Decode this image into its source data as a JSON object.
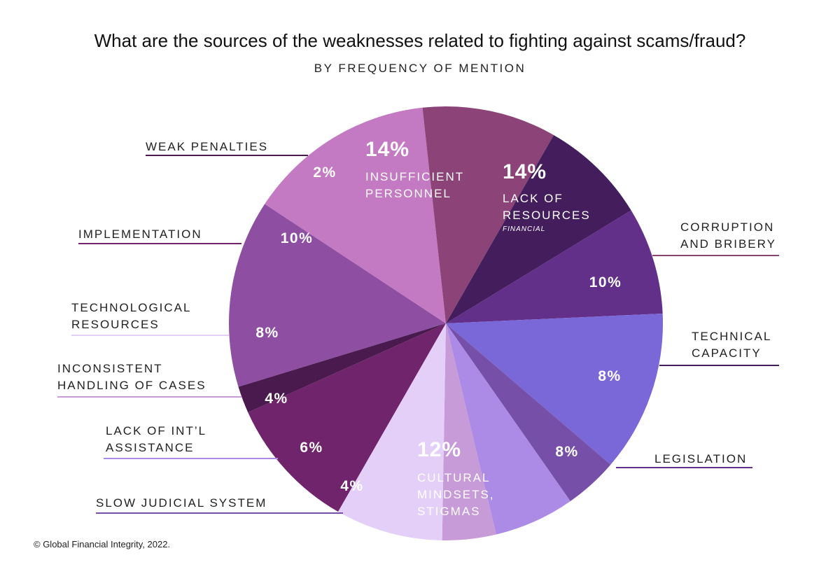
{
  "chart_data": {
    "type": "pie",
    "title": "What are the sources of the weaknesses related to fighting against scams/fraud?",
    "subtitle": "BY FREQUENCY OF MENTION",
    "credit": "© Global Financial Integrity, 2022.",
    "slices": [
      {
        "key": "insufficient_personnel",
        "value": 14,
        "value_label": "14%",
        "label_lines": [
          "INSUFFICIENT",
          "PERSONNEL"
        ],
        "color": "#8e4fa3"
      },
      {
        "key": "lack_of_resources",
        "value": 14,
        "value_label": "14%",
        "label_lines": [
          "LACK OF",
          "RESOURCES"
        ],
        "sub_label": "FINANCIAL",
        "color": "#c47ac2"
      },
      {
        "key": "corruption_and_bribery",
        "value": 10,
        "value_label": "10%",
        "label_lines": [
          "CORRUPTION",
          "AND BRIBERY"
        ],
        "color": "#8c4478"
      },
      {
        "key": "technical_capacity",
        "value": 8,
        "value_label": "8%",
        "label_lines": [
          "TECHNICAL",
          "CAPACITY"
        ],
        "color": "#431d5c"
      },
      {
        "key": "legislation",
        "value": 8,
        "value_label": "8%",
        "label_lines": [
          "LEGISLATION"
        ],
        "color": "#622f89"
      },
      {
        "key": "cultural_mindsets_stigmas",
        "value": 12,
        "value_label": "12%",
        "label_lines": [
          "CULTURAL",
          "MINDSETS,",
          "STIGMAS"
        ],
        "color": "#7a68d8"
      },
      {
        "key": "slow_judicial_system",
        "value": 4,
        "value_label": "4%",
        "label_lines": [
          "SLOW JUDICIAL SYSTEM"
        ],
        "color": "#7650a8"
      },
      {
        "key": "lack_of_intl_assistance",
        "value": 6,
        "value_label": "6%",
        "label_lines": [
          "LACK OF INT’L",
          "ASSISTANCE"
        ],
        "color": "#ab8be6"
      },
      {
        "key": "inconsistent_handling_of_cases",
        "value": 4,
        "value_label": "4%",
        "label_lines": [
          "INCONSISTENT",
          "HANDLING OF CASES"
        ],
        "color": "#c79bd8"
      },
      {
        "key": "technological_resources",
        "value": 8,
        "value_label": "8%",
        "label_lines": [
          "TECHNOLOGICAL",
          "RESOURCES"
        ],
        "color": "#e3cff8"
      },
      {
        "key": "implementation",
        "value": 10,
        "value_label": "10%",
        "label_lines": [
          "IMPLEMENTATION"
        ],
        "color": "#6f246b"
      },
      {
        "key": "weak_penalties",
        "value": 2,
        "value_label": "2%",
        "label_lines": [
          "WEAK PENALTIES"
        ],
        "color": "#4a1a4e"
      }
    ]
  }
}
